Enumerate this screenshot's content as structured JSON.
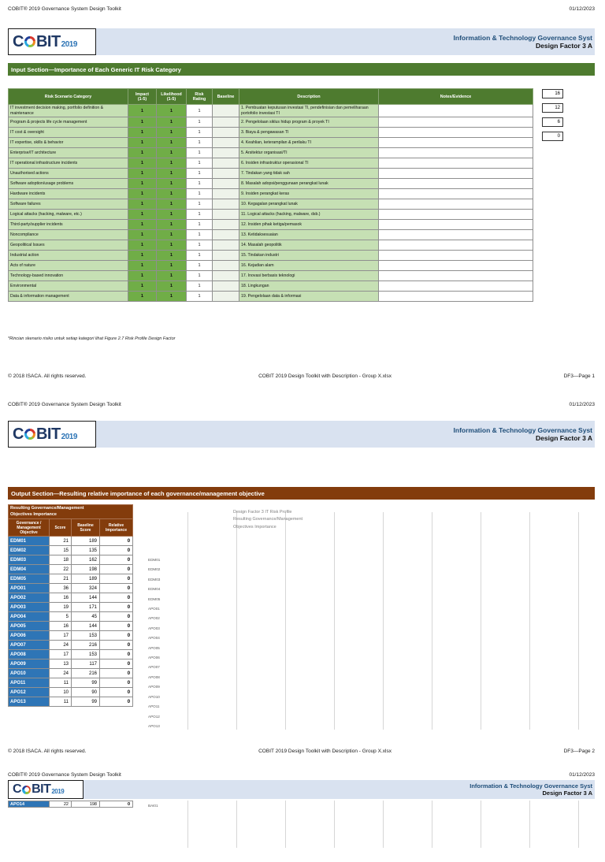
{
  "meta": {
    "doc_title": "COBIT® 2019 Governance System Design Toolkit",
    "date": "01/12/2023",
    "logo": {
      "prefix": "C",
      "suffix": "BIT",
      "year": "2019"
    },
    "band_line1": "Information & Technology Governance Syst",
    "band_line2": "Design Factor 3 A",
    "footer_left": "© 2018 ISACA. All rights reserved.",
    "footer_center": "COBIT 2019 Design Toolkit with Description - Group X.xlsx"
  },
  "colors": {
    "section_green": "#4e7b2f",
    "cell_light_green": "#c6e0b4",
    "cell_green": "#70ad47",
    "section_brown": "#833c0c",
    "objective_blue": "#2e75b6",
    "band_blue": "#d9e2f0",
    "brand_navy": "#1f3864"
  },
  "page1": {
    "banner": "Input Section—Importance of Each Generic IT Risk Category",
    "table": {
      "headers": [
        "Risk Scenario Category",
        "Impact\n(1-5)",
        "Likelihood\n(1-5)",
        "Risk\nRating",
        "Baseline",
        "Description",
        "Notes/Evidence"
      ],
      "rows": [
        {
          "category": "IT investment decision making, portfolio definition & maintenance",
          "impact": "1",
          "likelihood": "1",
          "risk_rating": "1",
          "baseline": "",
          "description": "1. Pembuatan keputusan investasi TI, pendefinisian dan pemeliharaan portofolio investasi TI",
          "notes": ""
        },
        {
          "category": "Program & projects life cycle management",
          "impact": "1",
          "likelihood": "1",
          "risk_rating": "1",
          "baseline": "",
          "description": "2. Pengelolaan siklus hidup program & proyek TI",
          "notes": ""
        },
        {
          "category": "IT cost & oversight",
          "impact": "1",
          "likelihood": "1",
          "risk_rating": "1",
          "baseline": "",
          "description": "3. Biaya & pengawasan TI",
          "notes": ""
        },
        {
          "category": "IT expertise, skills & behavior",
          "impact": "1",
          "likelihood": "1",
          "risk_rating": "1",
          "baseline": "",
          "description": "4. Keahlian, keterampilan & perilaku TI",
          "notes": ""
        },
        {
          "category": "Enterprise/IT architecture",
          "impact": "1",
          "likelihood": "1",
          "risk_rating": "1",
          "baseline": "",
          "description": "5. Arsitektur organisasi/TI",
          "notes": ""
        },
        {
          "category": "IT operational infrastructure incidents",
          "impact": "1",
          "likelihood": "1",
          "risk_rating": "1",
          "baseline": "",
          "description": "6. Insiden infrastruktur operasional TI",
          "notes": ""
        },
        {
          "category": "Unauthorised actions",
          "impact": "1",
          "likelihood": "1",
          "risk_rating": "1",
          "baseline": "",
          "description": "7. Tindakan yang tidak sah",
          "notes": ""
        },
        {
          "category": "Software adoption/usage problems",
          "impact": "1",
          "likelihood": "1",
          "risk_rating": "1",
          "baseline": "",
          "description": "8. Masalah adopsi/penggunaan perangkat lunak",
          "notes": ""
        },
        {
          "category": "Hardware incidents",
          "impact": "1",
          "likelihood": "1",
          "risk_rating": "1",
          "baseline": "",
          "description": "9. Insiden perangkat keras",
          "notes": ""
        },
        {
          "category": "Software failures",
          "impact": "1",
          "likelihood": "1",
          "risk_rating": "1",
          "baseline": "",
          "description": "10. Kegagalan perangkat lunak",
          "notes": ""
        },
        {
          "category": "Logical attacks (hacking, malware, etc.)",
          "impact": "1",
          "likelihood": "1",
          "risk_rating": "1",
          "baseline": "",
          "description": "11. Logical attacks (hacking, malware, dsb.)",
          "notes": ""
        },
        {
          "category": "Third-party/supplier incidents",
          "impact": "1",
          "likelihood": "1",
          "risk_rating": "1",
          "baseline": "",
          "description": "12. Insiden pihak ketiga/pemasok",
          "notes": ""
        },
        {
          "category": "Noncompliance",
          "impact": "1",
          "likelihood": "1",
          "risk_rating": "1",
          "baseline": "",
          "description": "13. Ketidaksesuaian",
          "notes": ""
        },
        {
          "category": "Geopolitical Issues",
          "impact": "1",
          "likelihood": "1",
          "risk_rating": "1",
          "baseline": "",
          "description": "14. Masalah geopolitik",
          "notes": ""
        },
        {
          "category": "Industrial action",
          "impact": "1",
          "likelihood": "1",
          "risk_rating": "1",
          "baseline": "",
          "description": "15. Tindakan industri",
          "notes": ""
        },
        {
          "category": "Acts of nature",
          "impact": "1",
          "likelihood": "1",
          "risk_rating": "1",
          "baseline": "",
          "description": "16. Kejadian alam",
          "notes": ""
        },
        {
          "category": "Technology-based innovation",
          "impact": "1",
          "likelihood": "1",
          "risk_rating": "1",
          "baseline": "",
          "description": "17. Inovasi berbasis teknologi",
          "notes": ""
        },
        {
          "category": "Environmental",
          "impact": "1",
          "likelihood": "1",
          "risk_rating": "1",
          "baseline": "",
          "description": "18. Lingkungan",
          "notes": ""
        },
        {
          "category": "Data & information management",
          "impact": "1",
          "likelihood": "1",
          "risk_rating": "1",
          "baseline": "",
          "description": "19. Pengelolaan data & informasi",
          "notes": ""
        }
      ]
    },
    "side_boxes": [
      "16",
      "12",
      "6",
      "0"
    ],
    "footnote": "*Rincian skenario risiko untuk setiap kategori lihat Figure 2.7 Risk Profile Design Factor",
    "footer_right": "DF3—Page 1"
  },
  "page2": {
    "banner": "Output Section—Resulting relative importance of each governance/management objective",
    "table": {
      "title": "Resulting Governance/Management\nObjectives Importance",
      "headers": [
        "Governance /\nManagement\nObjective",
        "Score",
        "Baseline\nScore",
        "Relative\nImportance"
      ],
      "rows": [
        [
          "EDM01",
          "21",
          "189",
          "0"
        ],
        [
          "EDM02",
          "15",
          "135",
          "0"
        ],
        [
          "EDM03",
          "18",
          "162",
          "0"
        ],
        [
          "EDM04",
          "22",
          "198",
          "0"
        ],
        [
          "EDM05",
          "21",
          "189",
          "0"
        ],
        [
          "APO01",
          "36",
          "324",
          "0"
        ],
        [
          "APO02",
          "16",
          "144",
          "0"
        ],
        [
          "APO03",
          "19",
          "171",
          "0"
        ],
        [
          "APO04",
          "5",
          "45",
          "0"
        ],
        [
          "APO05",
          "16",
          "144",
          "0"
        ],
        [
          "APO06",
          "17",
          "153",
          "0"
        ],
        [
          "APO07",
          "24",
          "216",
          "0"
        ],
        [
          "APO08",
          "17",
          "153",
          "0"
        ],
        [
          "APO09",
          "13",
          "117",
          "0"
        ],
        [
          "APO10",
          "24",
          "216",
          "0"
        ],
        [
          "APO11",
          "11",
          "99",
          "0"
        ],
        [
          "APO12",
          "10",
          "90",
          "0"
        ],
        [
          "APO13",
          "11",
          "99",
          "0"
        ]
      ]
    },
    "chart_title_lines": [
      "Design Factor 3 IT Risk Profile",
      "Resulting Governance/Management",
      "Objectives Importance"
    ],
    "footer_right": "DF3—Page 2"
  },
  "page3": {
    "rows": [
      [
        "APO14",
        "22",
        "198",
        "0"
      ]
    ],
    "chart_categories": [
      "BAI01"
    ]
  },
  "chart_data": {
    "type": "bar",
    "orientation": "horizontal",
    "title": "Design Factor 3 IT Risk Profile",
    "subtitle": "Resulting Governance/Management Objectives Importance",
    "categories": [
      "EDM01",
      "EDM02",
      "EDM03",
      "EDM04",
      "EDM05",
      "APO01",
      "APO02",
      "APO03",
      "APO04",
      "APO05",
      "APO06",
      "APO07",
      "APO08",
      "APO09",
      "APO10",
      "APO11",
      "APO12",
      "APO13"
    ],
    "values": [
      0,
      0,
      0,
      0,
      0,
      0,
      0,
      0,
      0,
      0,
      0,
      0,
      0,
      0,
      0,
      0,
      0,
      0
    ],
    "xlim": [
      0,
      1
    ],
    "grid": true,
    "legend": "none"
  }
}
